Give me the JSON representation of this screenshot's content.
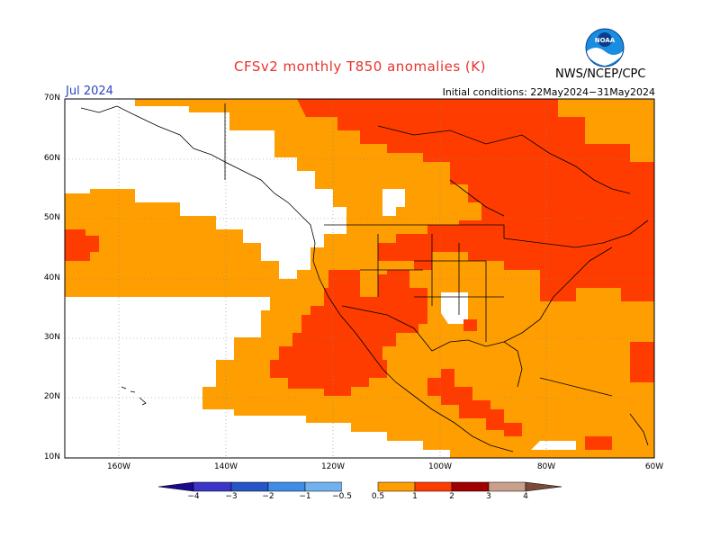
{
  "title": "CFSv2 monthly T850 anomalies (K)",
  "month": "Jul 2024",
  "initial_conditions": "Initial conditions: 22May2024−31May2024",
  "agency": "NWS/NCEP/CPC",
  "logo_text": "NOAA",
  "lat_ticks": [
    "70N",
    "60N",
    "50N",
    "40N",
    "30N",
    "20N",
    "10N"
  ],
  "lon_ticks": [
    "160W",
    "140W",
    "120W",
    "100W",
    "80W",
    "60W"
  ],
  "colorbar": {
    "labels": [
      "−4",
      "−3",
      "−2",
      "−1",
      "−0.5",
      "0.5",
      "1",
      "2",
      "3",
      "4"
    ],
    "colors": {
      "lt_m4": "#1a0a8c",
      "m4_m3": "#3a35c8",
      "m3_m2": "#2456c8",
      "m2_m1": "#3f8ce6",
      "m1_m05": "#6fb2ef",
      "neutral": "#ffffff",
      "p05_p1": "#ff9e00",
      "p1_p2": "#ff3c00",
      "p2_p3": "#a00000",
      "p3_p4": "#c8a08c",
      "gt_p4": "#7a4a3a"
    }
  },
  "map_colors": {
    "orange": "#ff9e00",
    "red": "#ff3c00",
    "white": "#ffffff"
  }
}
